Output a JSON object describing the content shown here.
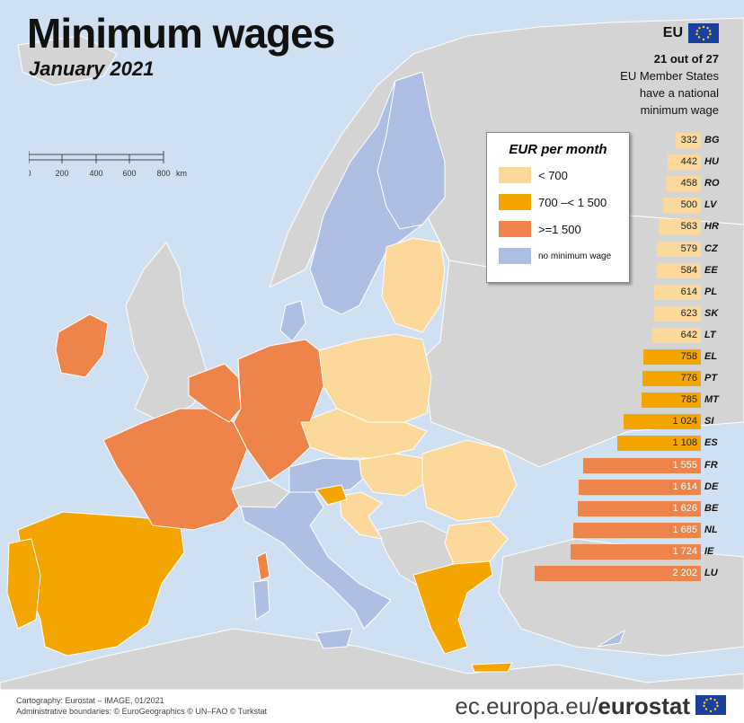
{
  "title": "Minimum wages",
  "subtitle": "January 2021",
  "eu_badge": {
    "label": "EU"
  },
  "eu_note": {
    "line1": "21 out of 27",
    "line2": "EU Member States",
    "line3": "have a national",
    "line4": "minimum wage"
  },
  "scale": {
    "ticks": [
      "0",
      "200",
      "400",
      "600",
      "800"
    ],
    "unit": "km"
  },
  "legend": {
    "title": "EUR per month",
    "items": [
      {
        "label": "< 700",
        "color": "#fcd89a"
      },
      {
        "label": "700 –< 1 500",
        "color": "#f5a500"
      },
      {
        "label": ">=1 500",
        "color": "#ee8449"
      },
      {
        "label": "no minimum wage",
        "color": "#aebfe3"
      }
    ]
  },
  "colors": {
    "low": "#fcd89a",
    "mid": "#f5a500",
    "high": "#ee8449",
    "none": "#aebfe3",
    "nonEU": "#d4d4d4",
    "sea": "#cfe0f2"
  },
  "chart_data": {
    "type": "bar",
    "orientation": "horizontal",
    "unit": "EUR per month",
    "bars": [
      {
        "code": "BG",
        "value": 332,
        "label": "332",
        "band": "low"
      },
      {
        "code": "HU",
        "value": 442,
        "label": "442",
        "band": "low"
      },
      {
        "code": "RO",
        "value": 458,
        "label": "458",
        "band": "low"
      },
      {
        "code": "LV",
        "value": 500,
        "label": "500",
        "band": "low"
      },
      {
        "code": "HR",
        "value": 563,
        "label": "563",
        "band": "low"
      },
      {
        "code": "CZ",
        "value": 579,
        "label": "579",
        "band": "low"
      },
      {
        "code": "EE",
        "value": 584,
        "label": "584",
        "band": "low"
      },
      {
        "code": "PL",
        "value": 614,
        "label": "614",
        "band": "low"
      },
      {
        "code": "SK",
        "value": 623,
        "label": "623",
        "band": "low"
      },
      {
        "code": "LT",
        "value": 642,
        "label": "642",
        "band": "low"
      },
      {
        "code": "EL",
        "value": 758,
        "label": "758",
        "band": "mid"
      },
      {
        "code": "PT",
        "value": 776,
        "label": "776",
        "band": "mid"
      },
      {
        "code": "MT",
        "value": 785,
        "label": "785",
        "band": "mid"
      },
      {
        "code": "SI",
        "value": 1024,
        "label": "1 024",
        "band": "mid"
      },
      {
        "code": "ES",
        "value": 1108,
        "label": "1 108",
        "band": "mid"
      },
      {
        "code": "FR",
        "value": 1555,
        "label": "1 555",
        "band": "high"
      },
      {
        "code": "DE",
        "value": 1614,
        "label": "1 614",
        "band": "high"
      },
      {
        "code": "BE",
        "value": 1626,
        "label": "1 626",
        "band": "high"
      },
      {
        "code": "NL",
        "value": 1685,
        "label": "1 685",
        "band": "high"
      },
      {
        "code": "IE",
        "value": 1724,
        "label": "1 724",
        "band": "high"
      },
      {
        "code": "LU",
        "value": 2202,
        "label": "2 202",
        "band": "high"
      }
    ]
  },
  "footer": {
    "credit1": "Cartography: Eurostat – IMAGE, 01/2021",
    "credit2": "Administrative boundaries: © EuroGeographics © UN–FAO © Turkstat",
    "brand_domain": "ec.europa.eu/",
    "brand_name": "eurostat"
  }
}
